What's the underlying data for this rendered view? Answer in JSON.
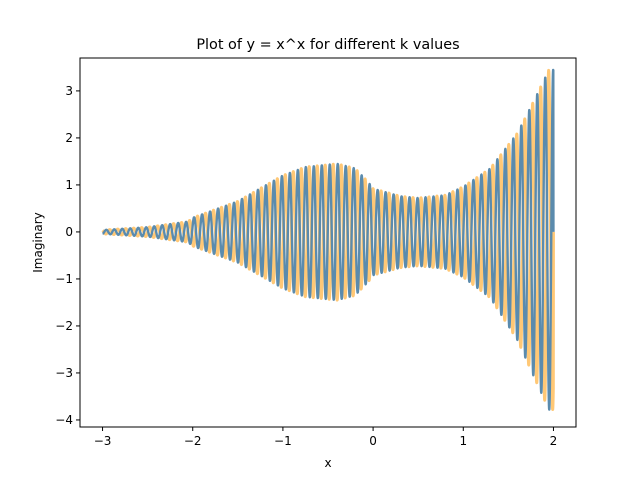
{
  "chart_data": {
    "type": "line",
    "title": "Plot of y = x^x for different k values",
    "xlabel": "x",
    "ylabel": "Imaginary",
    "xlim": [
      -3.25,
      2.25
    ],
    "ylim": [
      -4.15,
      3.7
    ],
    "x_ticks": [
      {
        "value": -3,
        "label": "−3"
      },
      {
        "value": -2,
        "label": "−2"
      },
      {
        "value": -1,
        "label": "−1"
      },
      {
        "value": 0,
        "label": "0"
      },
      {
        "value": 1,
        "label": "1"
      },
      {
        "value": 2,
        "label": "2"
      }
    ],
    "y_ticks": [
      {
        "value": -4,
        "label": "−4"
      },
      {
        "value": -3,
        "label": "−3"
      },
      {
        "value": -2,
        "label": "−2"
      },
      {
        "value": -1,
        "label": "−1"
      },
      {
        "value": 0,
        "label": "0"
      },
      {
        "value": 1,
        "label": "1"
      },
      {
        "value": 2,
        "label": "2"
      },
      {
        "value": 3,
        "label": "3"
      }
    ],
    "grid": false,
    "legend": "none",
    "x_range": [
      -3,
      2
    ],
    "envelope": {
      "x": [
        -3.0,
        -2.5,
        -2.05,
        -2.0,
        -1.5,
        -1.0,
        -0.75,
        -0.4,
        -0.2,
        -0.05,
        0.0,
        0.3,
        0.5,
        0.8,
        1.0,
        1.3,
        1.6,
        1.8,
        1.95,
        2.0
      ],
      "upper": [
        0.04,
        0.1,
        0.22,
        0.3,
        0.65,
        1.2,
        1.38,
        1.45,
        1.35,
        1.05,
        0.92,
        0.76,
        0.72,
        0.78,
        0.96,
        1.35,
        2.1,
        2.85,
        3.45,
        3.45
      ],
      "lower": [
        -0.04,
        -0.1,
        -0.22,
        -0.3,
        -0.65,
        -1.2,
        -1.38,
        -1.45,
        -1.35,
        -1.05,
        -0.92,
        -0.76,
        -0.72,
        -0.78,
        -0.96,
        -1.4,
        -2.3,
        -3.15,
        -3.78,
        -3.78
      ]
    },
    "series": [
      {
        "color": "#ffc876",
        "freq": 11.3,
        "phase": 0.0,
        "stroke_width": 3
      },
      {
        "color": "#5b8bad",
        "freq": 11.3,
        "phase": 2.7,
        "stroke_width": 2.4
      }
    ]
  }
}
